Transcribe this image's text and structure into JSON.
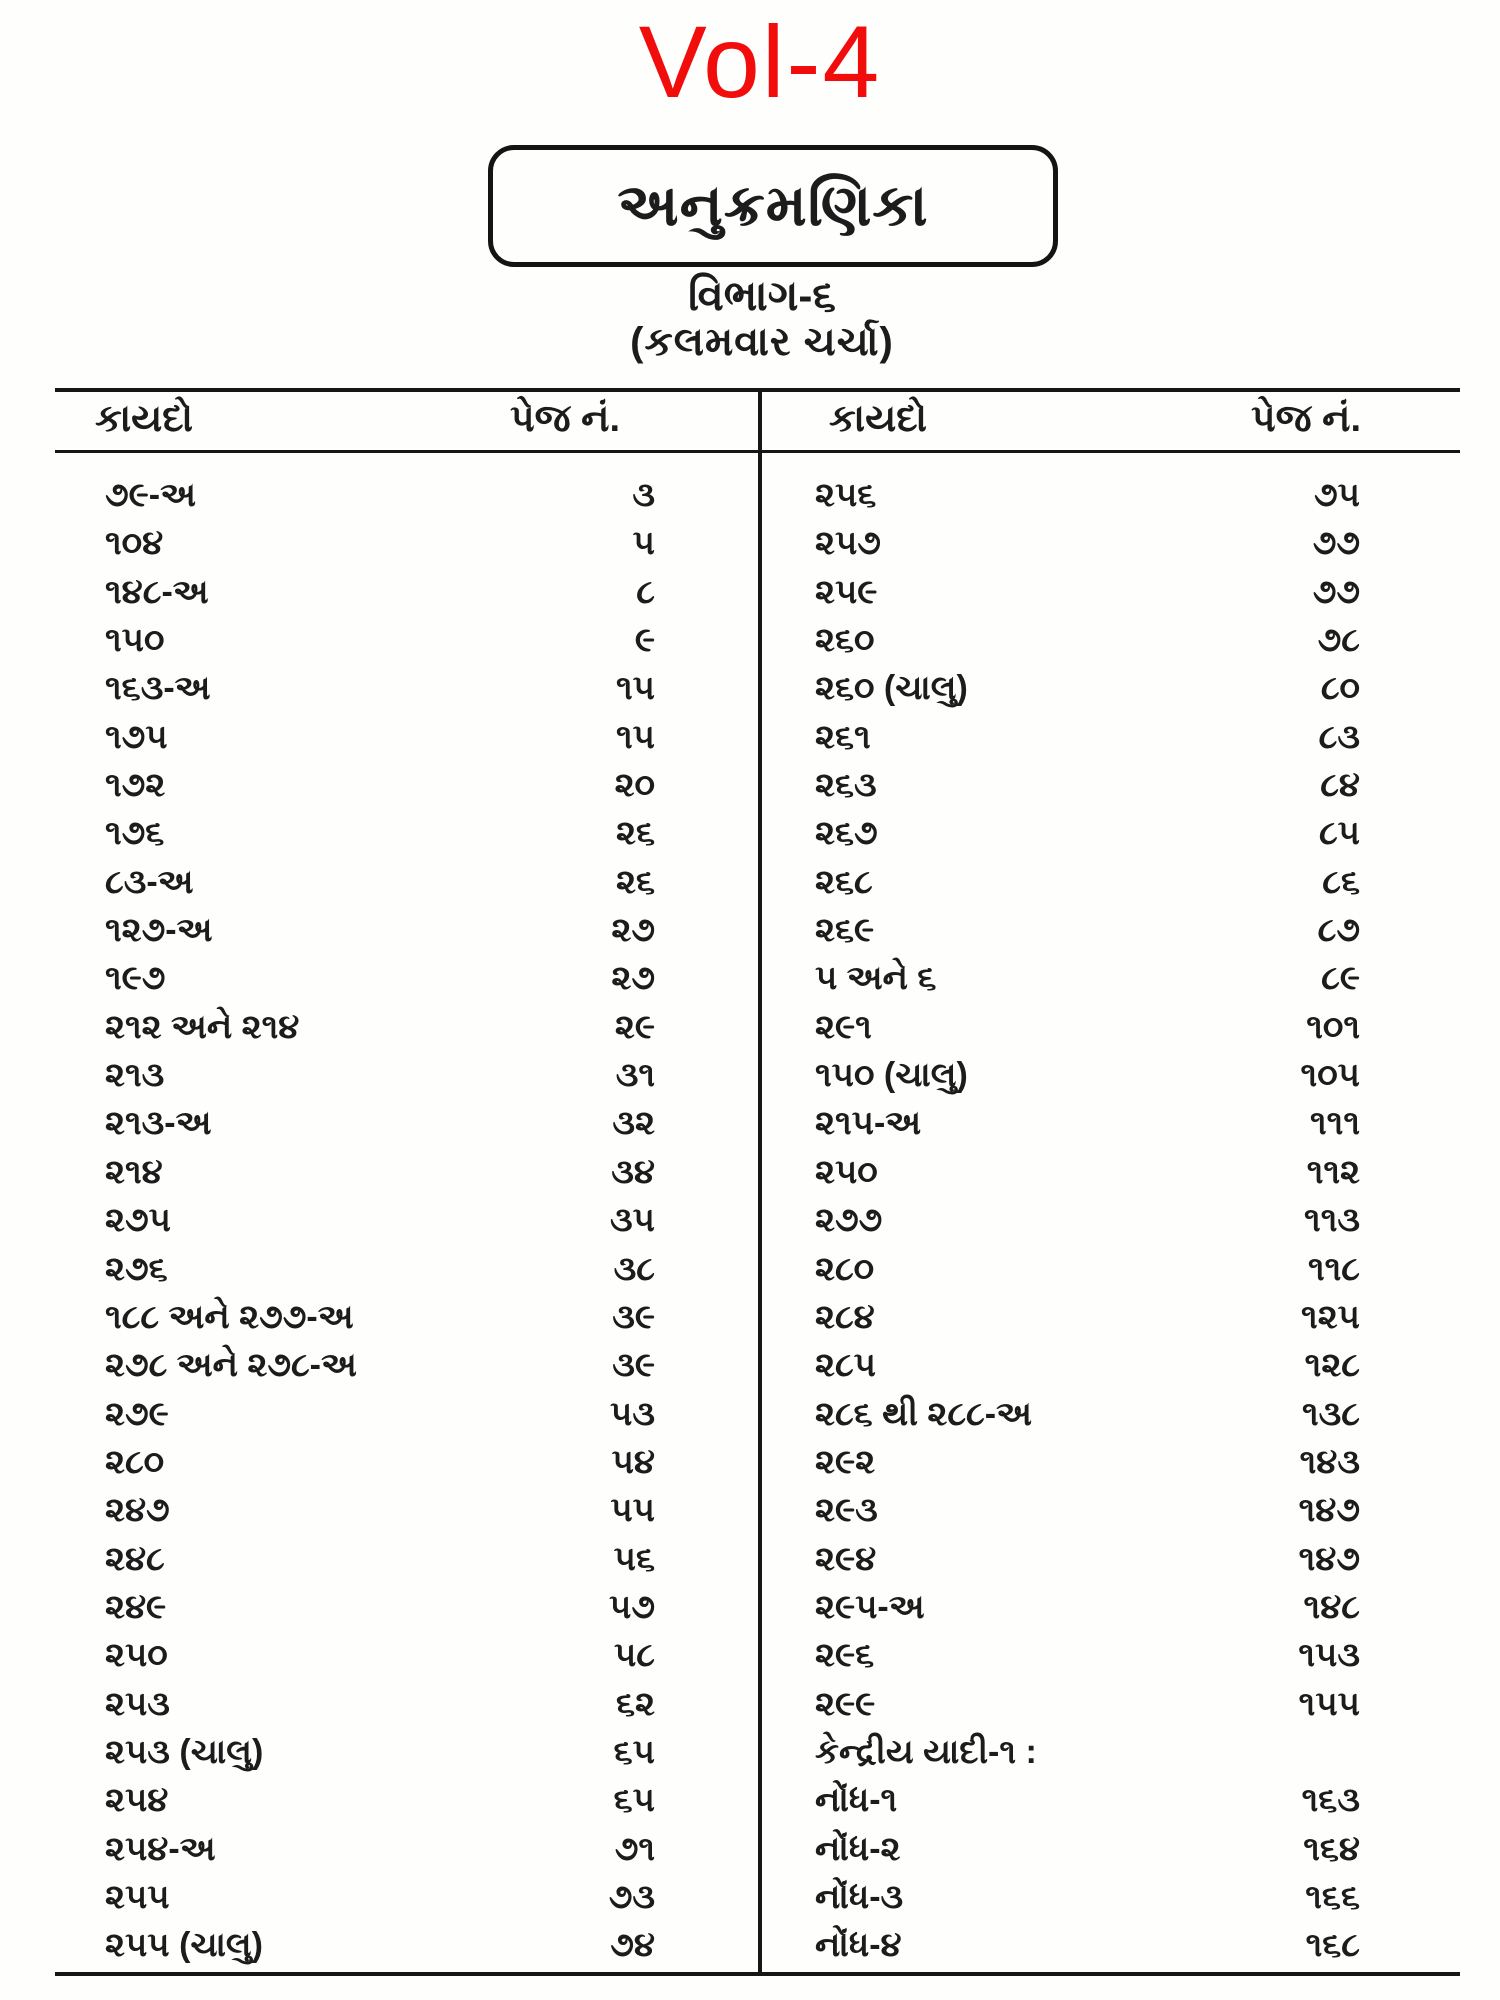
{
  "page": {
    "volume_title": "Vol-4",
    "box_title": "અનુક્રમણિકા",
    "section_title": "વિભાગ-૬",
    "section_subtitle": "(કલમવાર ચર્ચા)",
    "accent_red": "#f20d0d",
    "ink_color": "#1c1c1c"
  },
  "table": {
    "left_headers": {
      "law": "કાયદો",
      "page": "પેજ નં."
    },
    "right_headers": {
      "law": "કાયદો",
      "page": "પેજ નં."
    },
    "left_rows": [
      {
        "law": "૭૯-અ",
        "page": "૩"
      },
      {
        "law": "૧૦૪",
        "page": "૫"
      },
      {
        "law": "૧૪૮-અ",
        "page": "૮"
      },
      {
        "law": "૧૫૦",
        "page": "૯"
      },
      {
        "law": "૧૬૩-અ",
        "page": "૧૫"
      },
      {
        "law": "૧૭૫",
        "page": "૧૫"
      },
      {
        "law": "૧૭૨",
        "page": "૨૦"
      },
      {
        "law": "૧૭૬",
        "page": "૨૬"
      },
      {
        "law": "૮૩-અ",
        "page": "૨૬"
      },
      {
        "law": "૧૨૭-અ",
        "page": "૨૭"
      },
      {
        "law": "૧૯૭",
        "page": "૨૭"
      },
      {
        "law": "૨૧૨ અને ૨૧૪",
        "page": "૨૯"
      },
      {
        "law": "૨૧૩",
        "page": "૩૧"
      },
      {
        "law": "૨૧૩-અ",
        "page": "૩૨"
      },
      {
        "law": "૨૧૪",
        "page": "૩૪"
      },
      {
        "law": "૨૭૫",
        "page": "૩૫"
      },
      {
        "law": "૨૭૬",
        "page": "૩૮"
      },
      {
        "law": "૧૮૮ અને ૨૭૭-અ",
        "page": "૩૯"
      },
      {
        "law": "૨૭૮ અને ૨૭૮-અ",
        "page": "૩૯"
      },
      {
        "law": "૨૭૯",
        "page": "૫૩"
      },
      {
        "law": "૨૮૦",
        "page": "૫૪"
      },
      {
        "law": "૨૪૭",
        "page": "૫૫"
      },
      {
        "law": "૨૪૮",
        "page": "૫૬"
      },
      {
        "law": "૨૪૯",
        "page": "૫૭"
      },
      {
        "law": "૨૫૦",
        "page": "૫૮"
      },
      {
        "law": "૨૫૩",
        "page": "૬૨"
      },
      {
        "law": "૨૫૩ (ચાલુ)",
        "page": "૬૫"
      },
      {
        "law": "૨૫૪",
        "page": "૬૫"
      },
      {
        "law": "૨૫૪-અ",
        "page": "૭૧"
      },
      {
        "law": "૨૫૫",
        "page": "૭૩"
      },
      {
        "law": "૨૫૫ (ચાલુ)",
        "page": "૭૪"
      }
    ],
    "right_rows": [
      {
        "law": "૨૫૬",
        "page": "૭૫"
      },
      {
        "law": "૨૫૭",
        "page": "૭૭"
      },
      {
        "law": "૨૫૯",
        "page": "૭૭"
      },
      {
        "law": "૨૬૦",
        "page": "૭૮"
      },
      {
        "law": "૨૬૦ (ચાલુ)",
        "page": "૮૦"
      },
      {
        "law": "૨૬૧",
        "page": "૮૩"
      },
      {
        "law": "૨૬૩",
        "page": "૮૪"
      },
      {
        "law": "૨૬૭",
        "page": "૮૫"
      },
      {
        "law": "૨૬૮",
        "page": "૮૬"
      },
      {
        "law": "૨૬૯",
        "page": "૮૭"
      },
      {
        "law": "૫ અને ૬",
        "page": "૮૯"
      },
      {
        "law": "૨૯૧",
        "page": "૧૦૧"
      },
      {
        "law": "૧૫૦ (ચાલુ)",
        "page": "૧૦૫"
      },
      {
        "law": "૨૧૫-અ",
        "page": "૧૧૧"
      },
      {
        "law": "૨૫૦",
        "page": "૧૧૨"
      },
      {
        "law": "૨૭૭",
        "page": "૧૧૩"
      },
      {
        "law": "૨૮૦",
        "page": "૧૧૮"
      },
      {
        "law": "૨૮૪",
        "page": "૧૨૫"
      },
      {
        "law": "૨૮૫",
        "page": "૧૨૮"
      },
      {
        "law": "૨૮૬ થી ૨૮૮-અ",
        "page": "૧૩૮"
      },
      {
        "law": "૨૯૨",
        "page": "૧૪૩"
      },
      {
        "law": "૨૯૩",
        "page": "૧૪૭"
      },
      {
        "law": "૨૯૪",
        "page": "૧૪૭"
      },
      {
        "law": "૨૯૫-અ",
        "page": "૧૪૮"
      },
      {
        "law": "૨૯૬",
        "page": "૧૫૩"
      },
      {
        "law": "૨૯૯",
        "page": "૧૫૫"
      },
      {
        "law": "કેન્દ્રીય યાદી-૧ :",
        "page": ""
      },
      {
        "law": "નોંધ-૧",
        "page": "૧૬૩"
      },
      {
        "law": "નોંધ-૨",
        "page": "૧૬૪"
      },
      {
        "law": "નોંધ-૩",
        "page": "૧૬૬"
      },
      {
        "law": "નોંધ-૪",
        "page": "૧૬૮"
      }
    ]
  }
}
